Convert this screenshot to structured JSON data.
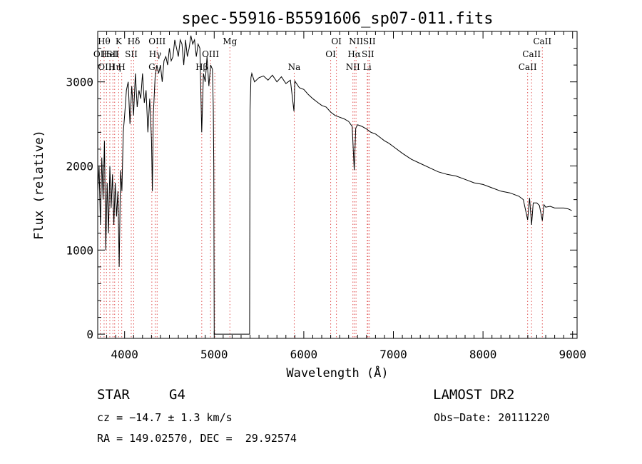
{
  "chart_data": {
    "type": "line",
    "title": "spec-55916-B5591606_sp07-011.fits",
    "xlabel": "Wavelength (Å)",
    "ylabel": "Flux (relative)",
    "xlim": [
      3700,
      9050
    ],
    "ylim": [
      -50,
      3600
    ],
    "x_ticks": [
      4000,
      5000,
      6000,
      7000,
      8000,
      9000
    ],
    "y_ticks": [
      0,
      1000,
      2000,
      3000
    ],
    "grid": false,
    "line_color": "#000000",
    "marker_line_color": "#e05050",
    "series": [
      {
        "x": [
          3700,
          3715,
          3730,
          3745,
          3760,
          3775,
          3790,
          3805,
          3820,
          3835,
          3850,
          3865,
          3880,
          3895,
          3910,
          3925,
          3940,
          3955,
          3970,
          3985,
          4000,
          4020,
          4040,
          4060,
          4080,
          4100,
          4120,
          4140,
          4160,
          4180,
          4200,
          4220,
          4240,
          4260,
          4280,
          4300,
          4310,
          4320,
          4340,
          4360,
          4380,
          4400,
          4420,
          4440,
          4460,
          4480,
          4500,
          4520,
          4540,
          4560,
          4580,
          4600,
          4620,
          4640,
          4660,
          4680,
          4700,
          4720,
          4740,
          4760,
          4780,
          4800,
          4820,
          4840,
          4861,
          4880,
          4900,
          4920,
          4940,
          4960,
          4980,
          4990,
          4995,
          5000,
          5100,
          5200,
          5300,
          5395,
          5400,
          5410,
          5420,
          5450,
          5500,
          5550,
          5600,
          5650,
          5700,
          5750,
          5800,
          5850,
          5890,
          5900,
          5950,
          6000,
          6050,
          6100,
          6150,
          6200,
          6250,
          6300,
          6350,
          6400,
          6450,
          6500,
          6540,
          6563,
          6580,
          6600,
          6650,
          6700,
          6750,
          6800,
          6850,
          6900,
          6950,
          7000,
          7100,
          7200,
          7300,
          7400,
          7500,
          7600,
          7700,
          7800,
          7900,
          8000,
          8100,
          8200,
          8300,
          8400,
          8450,
          8498,
          8520,
          8542,
          8560,
          8600,
          8630,
          8662,
          8680,
          8700,
          8750,
          8800,
          8850,
          8900,
          8950,
          8990
        ],
        "y": [
          1700,
          2000,
          1300,
          2100,
          1600,
          2300,
          1000,
          1800,
          1200,
          2000,
          1500,
          1900,
          1300,
          1800,
          1400,
          1700,
          800,
          1950,
          1700,
          2400,
          2600,
          2900,
          3000,
          2500,
          2950,
          2600,
          3100,
          2700,
          2900,
          2800,
          3100,
          2750,
          2900,
          2400,
          2800,
          2300,
          1700,
          2600,
          3050,
          3200,
          3100,
          3200,
          3000,
          3250,
          3300,
          3200,
          3400,
          3250,
          3300,
          3500,
          3400,
          3300,
          3500,
          3450,
          3200,
          3500,
          3300,
          3400,
          3550,
          3450,
          3500,
          3300,
          3450,
          3400,
          2400,
          3100,
          3000,
          3300,
          2950,
          3200,
          3150,
          2700,
          2000,
          0,
          0,
          0,
          0,
          0,
          2650,
          3050,
          3100,
          3000,
          3050,
          3070,
          3020,
          3080,
          3000,
          3060,
          2980,
          3020,
          2650,
          3010,
          2930,
          2910,
          2850,
          2800,
          2760,
          2720,
          2700,
          2640,
          2600,
          2580,
          2560,
          2530,
          2470,
          1950,
          2450,
          2490,
          2470,
          2440,
          2400,
          2380,
          2340,
          2300,
          2270,
          2230,
          2150,
          2080,
          2030,
          1980,
          1930,
          1900,
          1880,
          1840,
          1800,
          1780,
          1740,
          1700,
          1680,
          1640,
          1600,
          1360,
          1620,
          1300,
          1560,
          1560,
          1530,
          1350,
          1540,
          1510,
          1520,
          1500,
          1500,
          1500,
          1490,
          1470
        ]
      }
    ],
    "line_markers": [
      {
        "x": 3728,
        "row": 1,
        "label": "OII"
      },
      {
        "x": 3771,
        "row": 0,
        "label": "Hθ"
      },
      {
        "x": 3798,
        "row": 2,
        "label": "OIII"
      },
      {
        "x": 3835,
        "row": 1,
        "label": "HeI"
      },
      {
        "x": 3869,
        "row": 1,
        "label": "SII"
      },
      {
        "x": 3889,
        "row": 2,
        "label": "Hη"
      },
      {
        "x": 3934,
        "row": 0,
        "label": "K"
      },
      {
        "x": 3968,
        "row": 2,
        "label": "H"
      },
      {
        "x": 4074,
        "row": 1,
        "label": "SII"
      },
      {
        "x": 4102,
        "row": 0,
        "label": "Hδ"
      },
      {
        "x": 4304,
        "row": 2,
        "label": "G"
      },
      {
        "x": 4341,
        "row": 1,
        "label": "Hγ"
      },
      {
        "x": 4363,
        "row": 0,
        "label": "OIII"
      },
      {
        "x": 4861,
        "row": 2,
        "label": "Hβ"
      },
      {
        "x": 4959,
        "row": 1,
        "label": "OIII"
      },
      {
        "x": 5007,
        "row": 2,
        "label": ""
      },
      {
        "x": 5175,
        "row": 0,
        "label": "Mg"
      },
      {
        "x": 5893,
        "row": 2,
        "label": "Na"
      },
      {
        "x": 6300,
        "row": 1,
        "label": "OI"
      },
      {
        "x": 6364,
        "row": 0,
        "label": "OI"
      },
      {
        "x": 6548,
        "row": 2,
        "label": "NII"
      },
      {
        "x": 6563,
        "row": 1,
        "label": "Hα"
      },
      {
        "x": 6583,
        "row": 0,
        "label": "NII"
      },
      {
        "x": 6708,
        "row": 2,
        "label": "Li"
      },
      {
        "x": 6716,
        "row": 1,
        "label": "SII"
      },
      {
        "x": 6731,
        "row": 0,
        "label": "SII"
      },
      {
        "x": 8498,
        "row": 2,
        "label": "CaII"
      },
      {
        "x": 8542,
        "row": 1,
        "label": "CaII"
      },
      {
        "x": 8662,
        "row": 0,
        "label": "CaII"
      }
    ]
  },
  "info": {
    "class_label": "STAR",
    "subclass": "G4",
    "survey": "LAMOST DR2",
    "cz": "cz = −14.7 ± 1.3 km/s",
    "obs_date": "Obs−Date: 20111220",
    "radec": "RA = 149.02570, DEC =  29.92574"
  }
}
